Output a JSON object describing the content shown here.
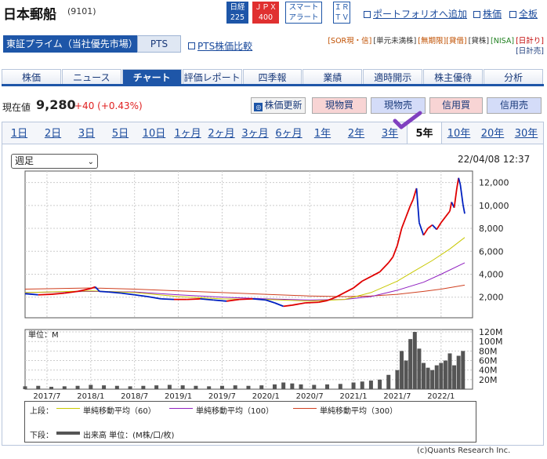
{
  "header": {
    "company_name": "日本郵船",
    "ticker": "(9101)",
    "badge_nikkei_1": "日経",
    "badge_nikkei_2": "225",
    "badge_jpx_1": "ＪＰＸ",
    "badge_jpx_2": "400",
    "badge_alert_1": "スマート",
    "badge_alert_2": "アラート",
    "badge_ir_1": "ＩＲ",
    "badge_ir_2": "ＴＶ",
    "portfolio_link": "ポートフォリオへ追加",
    "stock_price_link": "株価",
    "full_link": "全板"
  },
  "market": {
    "selected": "東証プライム（当社優先市場）",
    "pts_tab": "PTS",
    "pts_compare_link": "PTS株価比較",
    "tags": [
      "[SOR現・信]",
      "[単元未満株]",
      "[無期限][貸借]",
      "[貸株]",
      "[NISA]",
      "[日計り]",
      "[日計売]"
    ]
  },
  "tabs": [
    "株価",
    "ニュース",
    "チャート",
    "評価レポート",
    "四季報",
    "業績",
    "適時開示",
    "株主優待",
    "分析"
  ],
  "active_tab": "チャート",
  "quote": {
    "label": "現在値",
    "price": "9,280",
    "change": "+40 (+0.43%)"
  },
  "actions": {
    "refresh": "株価更新",
    "genbutsu_buy": "現物買",
    "genbutsu_sell": "現物売",
    "credit_buy": "信用買",
    "credit_sell": "信用売"
  },
  "periods": [
    "1日",
    "2日",
    "3日",
    "5日",
    "10日",
    "1ヶ月",
    "2ヶ月",
    "3ヶ月",
    "6ヶ月",
    "1年",
    "2年",
    "3年",
    "5年",
    "10年",
    "20年",
    "30年"
  ],
  "active_period": "5年",
  "chart": {
    "interval_select": "週足",
    "timestamp": "22/04/08 12:37",
    "volume_label": "単位：M",
    "legend_upper_label": "上段：",
    "legend_lower_label": "下段：",
    "ma60": "単純移動平均（60）",
    "ma100": "単純移動平均（100）",
    "ma300": "単純移動平均（300）",
    "volume_legend": "出来高 単位：(M株/口/枚)",
    "copyright": "(c)Quants Research Inc.",
    "colors": {
      "up": "#e00000",
      "down": "#0020c0",
      "ma60": "#c8c800",
      "ma100": "#9020c0",
      "ma300": "#d04020",
      "volume": "#555555"
    }
  },
  "chart_data": {
    "type": "line",
    "price_axis": {
      "ticks": [
        "12,000",
        "10,000",
        "8,000",
        "6,000",
        "4,000",
        "2,000"
      ],
      "ylim": [
        200,
        13000
      ]
    },
    "volume_axis": {
      "ticks": [
        "120M",
        "100M",
        "80M",
        "60M",
        "40M",
        "20M"
      ],
      "ylim": [
        0,
        125
      ]
    },
    "x_ticks": [
      "2017/7",
      "2018/1",
      "2018/7",
      "2019/1",
      "2019/7",
      "2020/1",
      "2020/7",
      "2021/1",
      "2021/7",
      "2022/1"
    ],
    "x_start": 2017.25,
    "x_end": 2022.27,
    "price": [
      [
        2017.25,
        2300
      ],
      [
        2017.4,
        2200
      ],
      [
        2017.55,
        2250
      ],
      [
        2017.7,
        2350
      ],
      [
        2017.85,
        2500
      ],
      [
        2018.0,
        2750
      ],
      [
        2018.05,
        2900
      ],
      [
        2018.1,
        2500
      ],
      [
        2018.2,
        2450
      ],
      [
        2018.35,
        2350
      ],
      [
        2018.5,
        2200
      ],
      [
        2018.65,
        2050
      ],
      [
        2018.8,
        1850
      ],
      [
        2018.95,
        1800
      ],
      [
        2019.1,
        1800
      ],
      [
        2019.25,
        1850
      ],
      [
        2019.4,
        1750
      ],
      [
        2019.55,
        1650
      ],
      [
        2019.7,
        1800
      ],
      [
        2019.85,
        1850
      ],
      [
        2020.0,
        1750
      ],
      [
        2020.1,
        1500
      ],
      [
        2020.2,
        1200
      ],
      [
        2020.3,
        1300
      ],
      [
        2020.45,
        1500
      ],
      [
        2020.6,
        1550
      ],
      [
        2020.7,
        1700
      ],
      [
        2020.8,
        2000
      ],
      [
        2020.9,
        2400
      ],
      [
        2021.0,
        2800
      ],
      [
        2021.1,
        3400
      ],
      [
        2021.2,
        3800
      ],
      [
        2021.3,
        4200
      ],
      [
        2021.4,
        5000
      ],
      [
        2021.45,
        5500
      ],
      [
        2021.5,
        6500
      ],
      [
        2021.55,
        8000
      ],
      [
        2021.6,
        9000
      ],
      [
        2021.65,
        10000
      ],
      [
        2021.68,
        10500
      ],
      [
        2021.72,
        11500
      ],
      [
        2021.75,
        8500
      ],
      [
        2021.8,
        7400
      ],
      [
        2021.85,
        8000
      ],
      [
        2021.9,
        8300
      ],
      [
        2021.95,
        7900
      ],
      [
        2022.0,
        8500
      ],
      [
        2022.05,
        9000
      ],
      [
        2022.1,
        9500
      ],
      [
        2022.12,
        10300
      ],
      [
        2022.15,
        9800
      ],
      [
        2022.18,
        11500
      ],
      [
        2022.2,
        12400
      ],
      [
        2022.22,
        11800
      ],
      [
        2022.25,
        10100
      ],
      [
        2022.27,
        9280
      ]
    ],
    "ma60": [
      [
        2017.25,
        2400
      ],
      [
        2018.0,
        2550
      ],
      [
        2018.5,
        2400
      ],
      [
        2019.0,
        2050
      ],
      [
        2019.5,
        1850
      ],
      [
        2020.0,
        1800
      ],
      [
        2020.5,
        1650
      ],
      [
        2020.9,
        1800
      ],
      [
        2021.2,
        2400
      ],
      [
        2021.5,
        3400
      ],
      [
        2021.7,
        4300
      ],
      [
        2021.9,
        5200
      ],
      [
        2022.1,
        6200
      ],
      [
        2022.27,
        7200
      ]
    ],
    "ma100": [
      [
        2017.25,
        2400
      ],
      [
        2018.0,
        2500
      ],
      [
        2018.5,
        2450
      ],
      [
        2019.0,
        2200
      ],
      [
        2019.5,
        2000
      ],
      [
        2020.0,
        1850
      ],
      [
        2020.5,
        1750
      ],
      [
        2020.9,
        1800
      ],
      [
        2021.2,
        2050
      ],
      [
        2021.5,
        2600
      ],
      [
        2021.8,
        3300
      ],
      [
        2022.0,
        4000
      ],
      [
        2022.27,
        5000
      ]
    ],
    "ma300": [
      [
        2017.25,
        2700
      ],
      [
        2018.0,
        2800
      ],
      [
        2018.5,
        2700
      ],
      [
        2019.0,
        2550
      ],
      [
        2019.5,
        2400
      ],
      [
        2020.0,
        2250
      ],
      [
        2020.5,
        2100
      ],
      [
        2020.9,
        2050
      ],
      [
        2021.2,
        2100
      ],
      [
        2021.5,
        2250
      ],
      [
        2021.8,
        2500
      ],
      [
        2022.0,
        2700
      ],
      [
        2022.27,
        3050
      ]
    ],
    "volume": [
      [
        2017.25,
        6
      ],
      [
        2017.4,
        7
      ],
      [
        2017.55,
        5
      ],
      [
        2017.7,
        6
      ],
      [
        2017.85,
        7
      ],
      [
        2018.0,
        9
      ],
      [
        2018.15,
        8
      ],
      [
        2018.3,
        7
      ],
      [
        2018.45,
        6
      ],
      [
        2018.6,
        7
      ],
      [
        2018.75,
        8
      ],
      [
        2018.9,
        9
      ],
      [
        2019.05,
        8
      ],
      [
        2019.2,
        7
      ],
      [
        2019.35,
        6
      ],
      [
        2019.5,
        7
      ],
      [
        2019.65,
        8
      ],
      [
        2019.8,
        7
      ],
      [
        2019.95,
        8
      ],
      [
        2020.1,
        10
      ],
      [
        2020.2,
        14
      ],
      [
        2020.3,
        12
      ],
      [
        2020.4,
        10
      ],
      [
        2020.55,
        9
      ],
      [
        2020.7,
        10
      ],
      [
        2020.85,
        11
      ],
      [
        2021.0,
        14
      ],
      [
        2021.1,
        16
      ],
      [
        2021.2,
        18
      ],
      [
        2021.3,
        20
      ],
      [
        2021.4,
        30
      ],
      [
        2021.5,
        40
      ],
      [
        2021.55,
        80
      ],
      [
        2021.6,
        60
      ],
      [
        2021.65,
        105
      ],
      [
        2021.7,
        120
      ],
      [
        2021.75,
        85
      ],
      [
        2021.8,
        55
      ],
      [
        2021.85,
        45
      ],
      [
        2021.9,
        40
      ],
      [
        2021.95,
        50
      ],
      [
        2022.0,
        55
      ],
      [
        2022.05,
        60
      ],
      [
        2022.1,
        75
      ],
      [
        2022.15,
        50
      ],
      [
        2022.2,
        70
      ],
      [
        2022.25,
        80
      ]
    ]
  }
}
